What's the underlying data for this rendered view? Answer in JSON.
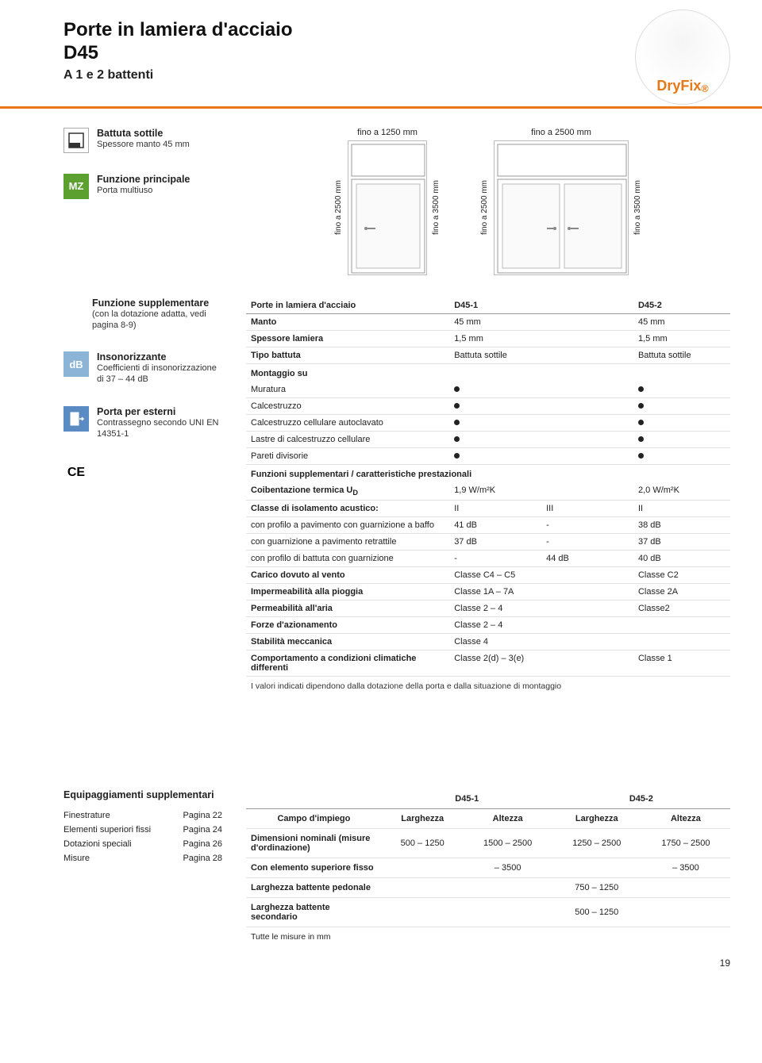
{
  "title": "Porte in lamiera d'acciaio",
  "model": "D45",
  "subtitle": "A 1 e 2 battenti",
  "badge": "DryFix",
  "colors": {
    "accent": "#e67817",
    "mz": "#5ca02f",
    "db": "#8bb4d6"
  },
  "diagrams": {
    "d1": {
      "top": "fino a 1250 mm",
      "left": "fino a 2500 mm",
      "right": "fino a 3500 mm"
    },
    "d2": {
      "top": "fino a 2500 mm",
      "left": "fino a 2500 mm",
      "right": "fino a 3500 mm"
    }
  },
  "left": {
    "battuta": {
      "label": "Battuta sottile",
      "desc": "Spessore manto 45 mm"
    },
    "funzione": {
      "label": "Funzione principale",
      "desc": "Porta multiuso",
      "icon": "MZ"
    },
    "suppl": {
      "label": "Funzione supplementare",
      "desc": "(con la dotazione adatta, vedi pagina 8-9)"
    },
    "insono": {
      "label": "Insonorizzante",
      "desc": "Coefficienti di insonorizzazione di 37 – 44 dB",
      "icon": "dB"
    },
    "esterni": {
      "label": "Porta per esterni",
      "desc": "Contrassegno secondo UNI EN 14351-1"
    },
    "ce": "CE"
  },
  "spec": {
    "header": {
      "c0": "Porte in lamiera d'acciaio",
      "c1": "D45-1",
      "c2": "D45-2"
    },
    "rows": [
      {
        "c0": "Manto",
        "c1": "45 mm",
        "c3": "45 mm"
      },
      {
        "c0": "Spessore lamiera",
        "c1": "1,5 mm",
        "c3": "1,5 mm"
      },
      {
        "c0": "Tipo battuta",
        "c1": "Battuta sottile",
        "c3": "Battuta sottile"
      }
    ],
    "mount_header": "Montaggio su",
    "mount": [
      {
        "c0": "Muratura",
        "d1": true,
        "d2": true
      },
      {
        "c0": "Calcestruzzo",
        "d1": true,
        "d2": true
      },
      {
        "c0": "Calcestruzzo cellulare autoclavato",
        "d1": true,
        "d2": true
      },
      {
        "c0": "Lastre di calcestruzzo cellulare",
        "d1": true,
        "d2": true
      },
      {
        "c0": "Pareti divisorie",
        "d1": true,
        "d2": true
      }
    ],
    "funz_header": "Funzioni supplementari / caratteristiche prestazionali",
    "funz": [
      {
        "c0": "Coibentazione termica U",
        "sub": "D",
        "c1": "1,9 W/m²K",
        "c3": "2,0 W/m²K"
      },
      {
        "c0": "Classe di isolamento acustico:",
        "c1": "II",
        "c2": "III",
        "c3": "II"
      },
      {
        "c0": "con profilo a pavimento con guarnizione a baffo",
        "c1": "41 dB",
        "c2": "-",
        "c3": "38 dB"
      },
      {
        "c0": "con guarnizione a pavimento retrattile",
        "c1": "37 dB",
        "c2": "-",
        "c3": "37 dB"
      },
      {
        "c0": "con profilo di battuta con guarnizione",
        "c1": "-",
        "c2": "44 dB",
        "c3": "40 dB"
      },
      {
        "c0": "Carico dovuto al vento",
        "c1": "Classe C4 – C5",
        "c3": "Classe C2"
      },
      {
        "c0": "Impermeabilità alla pioggia",
        "c1": "Classe 1A – 7A",
        "c3": "Classe 2A"
      },
      {
        "c0": "Permeabilità all'aria",
        "c1": "Classe 2 – 4",
        "c3": "Classe2"
      },
      {
        "c0": "Forze d'azionamento",
        "c1": "Classe 2 – 4",
        "c3": ""
      },
      {
        "c0": "Stabilità meccanica",
        "c1": "Classe 4",
        "c3": ""
      },
      {
        "c0": "Comportamento a condizioni climatiche differenti",
        "c1": "Classe 2(d) – 3(e)",
        "c3": "Classe 1"
      }
    ],
    "note": "I valori indicati dipendono dalla dotazione della porta e dalla situazione di montaggio"
  },
  "equip": {
    "title": "Equipaggiamenti supplementari",
    "rows": [
      {
        "label": "Finestrature",
        "page": "Pagina 22"
      },
      {
        "label": "Elementi superiori fissi",
        "page": "Pagina 24"
      },
      {
        "label": "Dotazioni speciali",
        "page": "Pagina 26"
      },
      {
        "label": "Misure",
        "page": "Pagina 28"
      }
    ]
  },
  "dims": {
    "head": {
      "g1": "D45-1",
      "g2": "D45-2"
    },
    "sub": {
      "c0": "Campo d'impiego",
      "c1": "Larghezza",
      "c2": "Altezza",
      "c3": "Larghezza",
      "c4": "Altezza"
    },
    "rows": [
      {
        "c0": "Dimensioni nominali (misure d'ordinazione)",
        "c1": "500 – 1250",
        "c2": "1500 – 2500",
        "c3": "1250 – 2500",
        "c4": "1750 – 2500"
      },
      {
        "c0": "Con elemento superiore fisso",
        "c1": "",
        "c2": "– 3500",
        "c3": "",
        "c4": "– 3500"
      },
      {
        "c0": "Larghezza battente pedonale",
        "c1": "",
        "c2": "",
        "c3": "750 – 1250",
        "c4": ""
      },
      {
        "c0": "Larghezza battente secondario",
        "c1": "",
        "c2": "",
        "c3": "500 – 1250",
        "c4": ""
      }
    ],
    "footnote": "Tutte le misure in mm"
  },
  "pageNum": "19"
}
